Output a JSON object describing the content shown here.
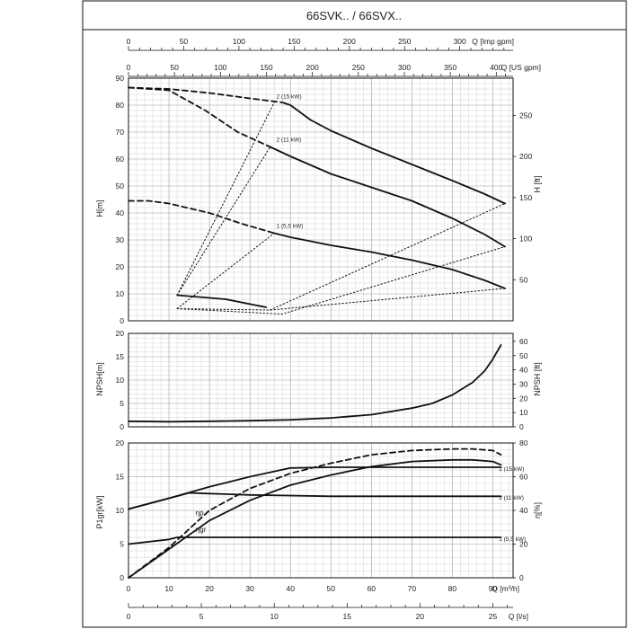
{
  "title": "66SVK.. / 66SVX..",
  "axes": {
    "imp_gpm": {
      "label": "Q [Imp gpm]",
      "ticks": [
        0,
        50,
        100,
        150,
        200,
        250,
        300
      ]
    },
    "us_gpm": {
      "label": "Q [US gpm]",
      "ticks": [
        0,
        50,
        100,
        150,
        200,
        250,
        300,
        350,
        400
      ]
    },
    "head_m": {
      "label": "H[m]",
      "ticks": [
        0,
        10,
        20,
        30,
        40,
        50,
        60,
        70,
        80,
        90
      ]
    },
    "head_ft": {
      "label": "H [ft]",
      "ticks": [
        50,
        100,
        150,
        200,
        250
      ]
    },
    "npsh_m": {
      "label": "NPSH[m]",
      "ticks": [
        0,
        5,
        10,
        15,
        20
      ]
    },
    "npsh_ft": {
      "label": "NPSH [ft]",
      "ticks": [
        0,
        10,
        20,
        30,
        40,
        50,
        60
      ]
    },
    "power_kw": {
      "label": "P1gr[kW]",
      "ticks": [
        0,
        5,
        10,
        15,
        20
      ]
    },
    "eff_pct": {
      "label": "η[%]",
      "ticks": [
        0,
        20,
        40,
        60,
        80
      ]
    },
    "flow_m3h": {
      "label": "Q [m³/h]",
      "ticks": [
        0,
        10,
        20,
        30,
        40,
        50,
        60,
        70,
        80,
        90
      ]
    },
    "flow_ls": {
      "label": "Q [l/s]",
      "ticks": [
        0,
        5,
        10,
        15,
        20,
        25
      ]
    }
  },
  "chart_data": [
    {
      "type": "line",
      "panel": "head",
      "xlabel": "Q [m³/h]",
      "ylabel": "H[m]",
      "xlim": [
        0,
        95
      ],
      "ylim": [
        0,
        90
      ],
      "series": [
        {
          "name": "2 (15 kW)",
          "style": "dashed",
          "x": [
            0,
            10,
            20,
            30,
            38
          ],
          "y": [
            86.5,
            86,
            84.5,
            82.5,
            81
          ]
        },
        {
          "name": "2 (15 kW)",
          "style": "solid",
          "x": [
            38,
            40,
            45,
            50,
            60,
            70,
            80,
            88,
            93
          ],
          "y": [
            81,
            80,
            74.5,
            70.5,
            64,
            58,
            52,
            47,
            43.5
          ]
        },
        {
          "name": "2 (11 kW)",
          "style": "dashed",
          "x": [
            0,
            10,
            19,
            27,
            35
          ],
          "y": [
            86.5,
            85.5,
            78,
            70,
            64.5
          ]
        },
        {
          "name": "2 (11 kW)",
          "style": "solid",
          "x": [
            35,
            40,
            50,
            60,
            70,
            80,
            88,
            93
          ],
          "y": [
            64.5,
            61,
            54.5,
            49.5,
            44.5,
            38,
            32,
            27.5
          ]
        },
        {
          "name": "1 (5,5 kW)",
          "style": "dashed",
          "x": [
            0,
            5,
            10,
            20,
            28,
            36
          ],
          "y": [
            44.5,
            44.5,
            43.5,
            40,
            36,
            32.5
          ]
        },
        {
          "name": "1 (5,5 kW)",
          "style": "solid",
          "x": [
            36,
            40,
            50,
            60,
            70,
            80,
            88,
            93
          ],
          "y": [
            32.5,
            31,
            28,
            25.5,
            22.5,
            19,
            15,
            12
          ]
        },
        {
          "name": "efficiency-region-upper",
          "style": "solid",
          "x": [
            12,
            24,
            34
          ],
          "y": [
            9.5,
            8,
            5
          ]
        },
        {
          "name": "efficiency-region-lower",
          "style": "dotted",
          "x": [
            12,
            35,
            93
          ],
          "y": [
            4.5,
            4,
            12
          ]
        },
        {
          "name": "efficiency-region-middle",
          "style": "dotted",
          "x": [
            12,
            38,
            93
          ],
          "y": [
            4.5,
            2.5,
            27.5
          ]
        },
        {
          "name": "efficiency-region-lower-b",
          "style": "dotted",
          "x": [
            35,
            93
          ],
          "y": [
            4,
            43.5
          ]
        },
        {
          "name": "efficiency-region-left-1",
          "style": "dotted",
          "x": [
            12,
            35
          ],
          "y": [
            9.5,
            64.5
          ]
        },
        {
          "name": "efficiency-region-left-2",
          "style": "dotted",
          "x": [
            12,
            36
          ],
          "y": [
            9.5,
            81
          ]
        },
        {
          "name": "efficiency-region-left-3",
          "style": "dotted",
          "x": [
            12,
            36
          ],
          "y": [
            4.5,
            32.5
          ]
        }
      ]
    },
    {
      "type": "line",
      "panel": "npsh",
      "xlabel": "Q [m³/h]",
      "ylabel": "NPSH[m]",
      "xlim": [
        0,
        95
      ],
      "ylim": [
        0,
        20
      ],
      "series": [
        {
          "name": "NPSH",
          "style": "solid",
          "x": [
            0,
            10,
            20,
            30,
            40,
            50,
            60,
            70,
            75,
            80,
            85,
            88,
            90,
            92
          ],
          "y": [
            1.2,
            1.1,
            1.2,
            1.3,
            1.5,
            1.9,
            2.6,
            4,
            5,
            6.8,
            9.5,
            12,
            14.5,
            17.5
          ]
        }
      ]
    },
    {
      "type": "line",
      "panel": "power-efficiency",
      "xlabel": "Q [m³/h]",
      "ylabel": "P1gr[kW]",
      "y2label": "η[%]",
      "xlim": [
        0,
        95
      ],
      "ylim": [
        0,
        20
      ],
      "y2lim": [
        0,
        80
      ],
      "series": [
        {
          "name": "2 (15 kW)",
          "style": "solid",
          "x": [
            0,
            10,
            20,
            30,
            40,
            50,
            60,
            70,
            80,
            92
          ],
          "y": [
            10.2,
            11.8,
            13.5,
            15,
            16.3,
            16.4,
            16.4,
            16.4,
            16.4,
            16.4
          ]
        },
        {
          "name": "2 (11 kW)",
          "style": "solid",
          "x": [
            0,
            10,
            15,
            20,
            30,
            40,
            50,
            60,
            70,
            80,
            92
          ],
          "y": [
            10.2,
            11.8,
            12.6,
            12.5,
            12.3,
            12.2,
            12.1,
            12.1,
            12.1,
            12.1,
            12.1
          ]
        },
        {
          "name": "1 (5,5 kW)",
          "style": "solid",
          "x": [
            0,
            10,
            12,
            20,
            40,
            60,
            80,
            92
          ],
          "y": [
            5,
            5.7,
            6,
            6,
            6,
            6,
            6,
            6
          ]
        },
        {
          "name": "ηp",
          "style": "dashed",
          "axis": "y2",
          "x": [
            0,
            10,
            20,
            30,
            40,
            50,
            60,
            70,
            80,
            85,
            90,
            92
          ],
          "y": [
            0,
            18,
            40,
            53,
            62,
            68,
            73,
            75.5,
            76.5,
            76.5,
            75.5,
            73
          ]
        },
        {
          "name": "ηgr",
          "style": "solid",
          "axis": "y2",
          "x": [
            0,
            10,
            20,
            30,
            40,
            50,
            60,
            70,
            80,
            85,
            90,
            92
          ],
          "y": [
            0,
            17,
            34,
            46,
            55,
            61,
            66,
            69,
            70,
            70,
            69,
            67
          ]
        }
      ],
      "annotations": [
        "ηp",
        "ηgr"
      ]
    }
  ]
}
